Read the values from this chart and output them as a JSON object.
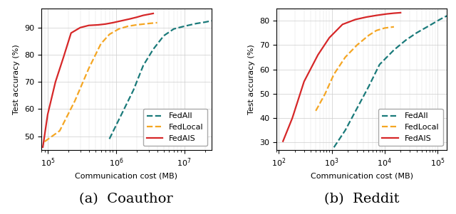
{
  "coauthor": {
    "subtitle": "(a)  Coauthor",
    "xlabel": "Communication cost (MB)",
    "ylabel": "Test accuracy (%)",
    "xlim_log": [
      80000.0,
      25000000.0
    ],
    "ylim": [
      45,
      97
    ],
    "yticks": [
      50,
      60,
      70,
      80,
      90
    ],
    "fedall": {
      "x": [
        800000.0,
        1200000.0,
        1800000.0,
        2500000.0,
        3500000.0,
        5000000.0,
        7000000.0,
        10000000.0,
        15000000.0,
        20000000.0,
        25000000.0
      ],
      "y": [
        49,
        58,
        67,
        76,
        82,
        87,
        89.5,
        90.5,
        91.5,
        92,
        92.5
      ],
      "color": "#1a7a7a",
      "linestyle": "dashed",
      "label": "FedAll"
    },
    "fedlocal": {
      "x": [
        90000.0,
        150000.0,
        250000.0,
        400000.0,
        600000.0,
        800000.0,
        1100000.0,
        1500000.0,
        2000000.0,
        3000000.0,
        4000000.0
      ],
      "y": [
        48,
        52,
        63,
        75,
        84,
        87.5,
        89.5,
        90.5,
        91,
        91.5,
        91.8
      ],
      "color": "#f5a623",
      "linestyle": "dashed",
      "label": "FedLocal"
    },
    "fedais": {
      "x": [
        85000.0,
        100000.0,
        130000.0,
        170000.0,
        220000.0,
        300000.0,
        400000.0,
        550000.0,
        700000.0,
        900000.0,
        1200000.0,
        1600000.0,
        2000000.0,
        2500000.0,
        3500000.0
      ],
      "y": [
        46,
        58,
        70,
        79,
        88,
        90,
        90.8,
        91,
        91.3,
        91.8,
        92.5,
        93.2,
        93.8,
        94.5,
        95.2
      ],
      "color": "#d62728",
      "linestyle": "solid",
      "label": "FedAIS"
    }
  },
  "reddit": {
    "subtitle": "(b)  Reddit",
    "xlabel": "Communication cost (MB)",
    "ylabel": "Test accuracy (%)",
    "xlim_log": [
      90,
      150000.0
    ],
    "ylim": [
      27,
      85
    ],
    "yticks": [
      30,
      40,
      50,
      60,
      70,
      80
    ],
    "fedall": {
      "x": [
        1100,
        1800,
        3000,
        5000,
        8000,
        15000.0,
        25000.0,
        40000.0,
        70000.0,
        110000.0,
        150000.0
      ],
      "y": [
        28,
        35,
        44,
        53,
        62,
        68,
        72,
        75,
        78,
        80.5,
        82
      ],
      "color": "#1a7a7a",
      "linestyle": "dashed",
      "label": "FedAll"
    },
    "fedlocal": {
      "x": [
        500,
        750,
        1100,
        1800,
        3000,
        5000,
        7000,
        10000.0,
        15000.0
      ],
      "y": [
        43,
        50,
        58,
        65,
        70,
        74,
        76,
        77,
        77.5
      ],
      "color": "#f5a623",
      "linestyle": "dashed",
      "label": "FedLocal"
    },
    "fedais": {
      "x": [
        120,
        180,
        300,
        550,
        900,
        1600,
        2800,
        4500,
        7000,
        11000.0,
        15000.0,
        20000.0
      ],
      "y": [
        30.5,
        40,
        55,
        66,
        73,
        78.5,
        80.5,
        81.5,
        82.2,
        82.8,
        83.1,
        83.3
      ],
      "color": "#d62728",
      "linestyle": "solid",
      "label": "FedAIS"
    }
  },
  "legend_fontsize": 8,
  "axis_fontsize": 8,
  "subtitle_fontsize": 14,
  "linewidth": 1.6
}
